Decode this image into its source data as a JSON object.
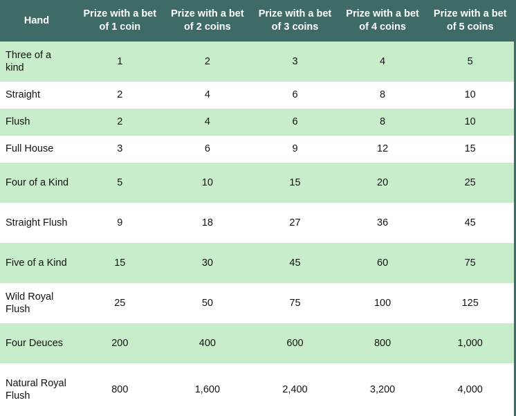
{
  "table": {
    "headers": {
      "hand": "Hand",
      "bets": [
        "Prize with a bet of 1 coin",
        "Prize with a bet of 2 coins",
        "Prize with a bet of 3 coins",
        "Prize with a bet of 4 coins",
        "Prize with a bet of 5 coins"
      ]
    },
    "rows": [
      {
        "hand": "Three of a kind",
        "prizes": [
          "1",
          "2",
          "3",
          "4",
          "5"
        ]
      },
      {
        "hand": "Straight",
        "prizes": [
          "2",
          "4",
          "6",
          "8",
          "10"
        ]
      },
      {
        "hand": "Flush",
        "prizes": [
          "2",
          "4",
          "6",
          "8",
          "10"
        ]
      },
      {
        "hand": "Full House",
        "prizes": [
          "3",
          "6",
          "9",
          "12",
          "15"
        ]
      },
      {
        "hand": "Four of a Kind",
        "prizes": [
          "5",
          "10",
          "15",
          "20",
          "25"
        ]
      },
      {
        "hand": "Straight Flush",
        "prizes": [
          "9",
          "18",
          "27",
          "36",
          "45"
        ]
      },
      {
        "hand": "Five of a Kind",
        "prizes": [
          "15",
          "30",
          "45",
          "60",
          "75"
        ]
      },
      {
        "hand": "Wild Royal Flush",
        "prizes": [
          "25",
          "50",
          "75",
          "100",
          "125"
        ]
      },
      {
        "hand": "Four Deuces",
        "prizes": [
          "200",
          "400",
          "600",
          "800",
          "1,000"
        ]
      },
      {
        "hand": "Natural Royal Flush",
        "prizes": [
          "800",
          "1,600",
          "2,400",
          "3,200",
          "4,000"
        ]
      }
    ]
  },
  "colors": {
    "header_bg": "#3f6b66",
    "header_text": "#ffffff",
    "row_shaded": "#c7edcb",
    "row_plain": "#ffffff"
  }
}
